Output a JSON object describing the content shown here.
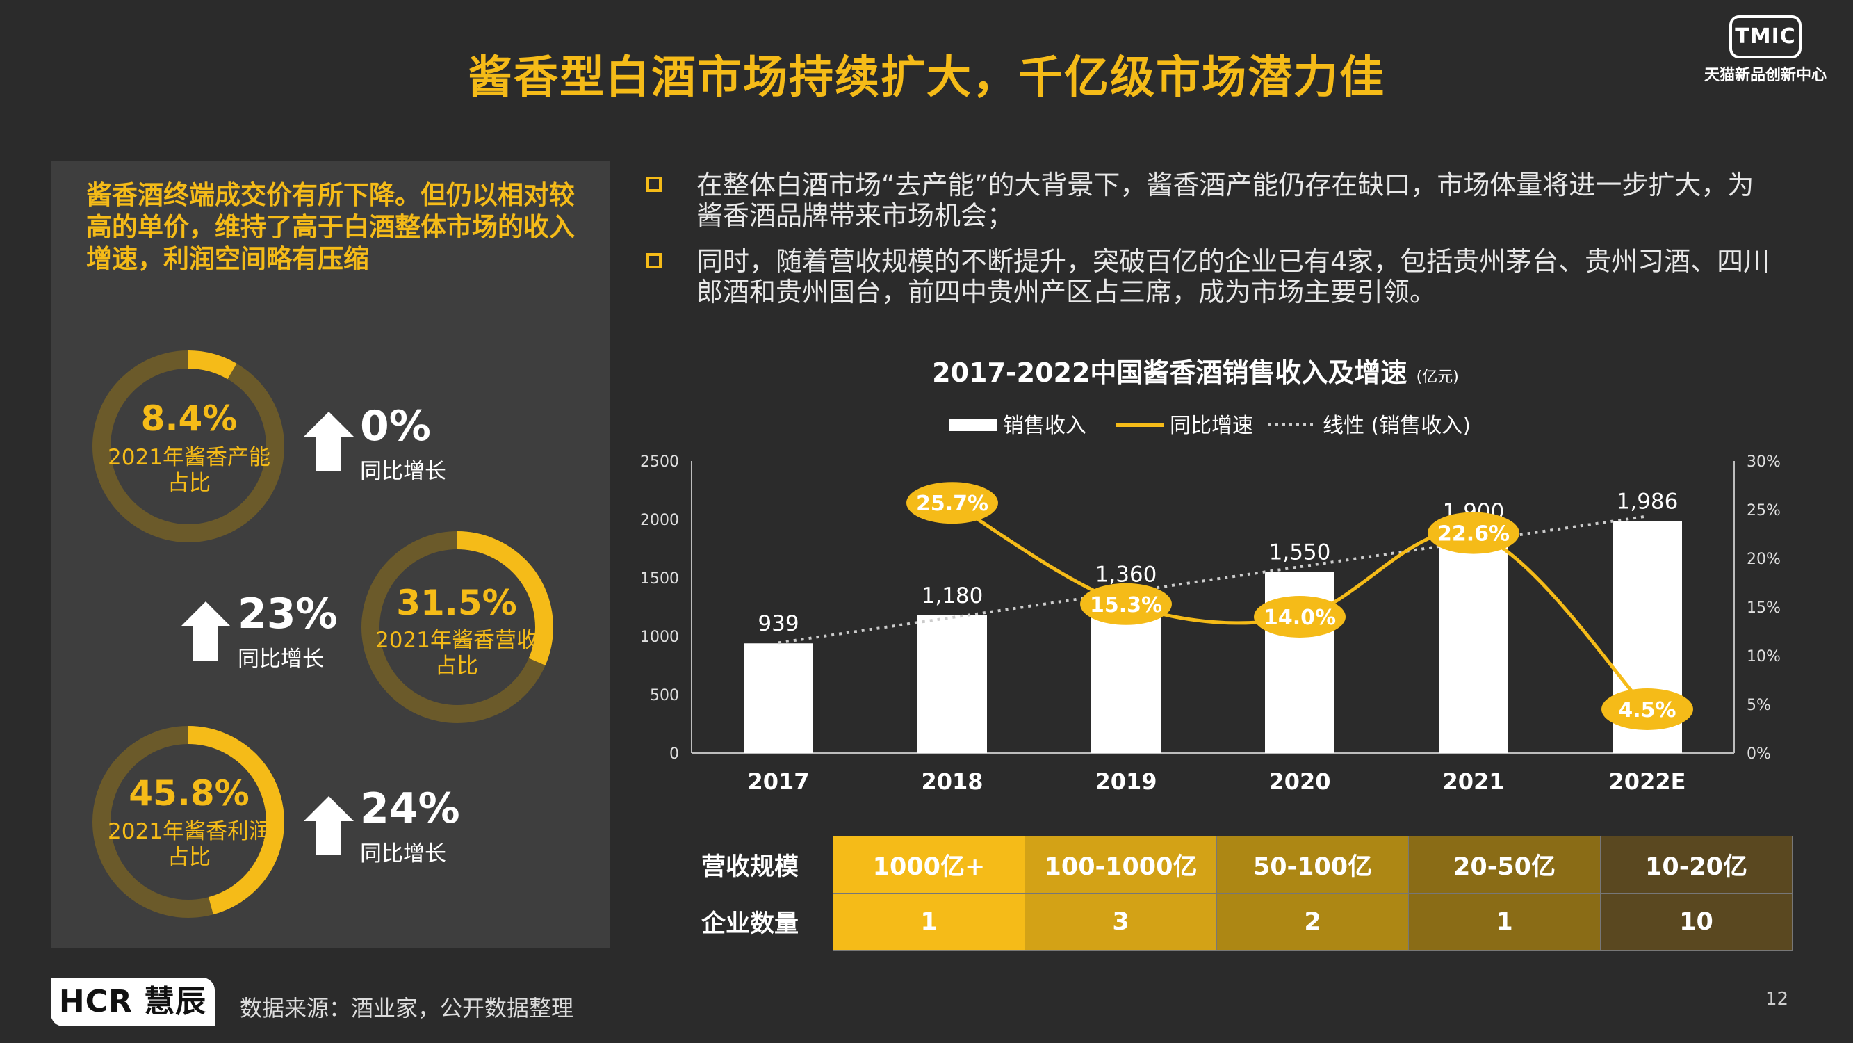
{
  "title": "酱香型白酒市场持续扩大，千亿级市场潜力佳",
  "logo": {
    "mark": "TMIC",
    "subtitle": "天猫新品创新中心"
  },
  "left_panel": {
    "title": "酱香酒终端成交价有所下降。但仍以相对较高的单价，维持了高于白酒整体市场的收入增速，利润空间略有压缩",
    "rings": [
      {
        "value": "8.4%",
        "label": "2021年酱香产能占比",
        "fraction": 0.084
      },
      {
        "value": "31.5%",
        "label": "2021年酱香营收占比",
        "fraction": 0.315
      },
      {
        "value": "45.8%",
        "label": "2021年酱香利润占比",
        "fraction": 0.458
      }
    ],
    "stats": [
      {
        "value": "0%",
        "label": "同比增长"
      },
      {
        "value": "23%",
        "label": "同比增长"
      },
      {
        "value": "24%",
        "label": "同比增长"
      }
    ]
  },
  "bullets": [
    "在整体白酒市场“去产能”的大背景下，酱香酒产能仍存在缺口，市场体量将进一步扩大，为酱香酒品牌带来市场机会；",
    "同时，随着营收规模的不断提升，突破百亿的企业已有4家，包括贵州茅台、贵州习酒、四川郎酒和贵州国台，前四中贵州产区占三席，成为市场主要引领。"
  ],
  "chart_data": {
    "type": "bar",
    "title": "2017-2022中国酱香酒销售收入及增速",
    "unit": "(亿元)",
    "categories": [
      "2017",
      "2018",
      "2019",
      "2020",
      "2021",
      "2022E"
    ],
    "series": [
      {
        "name": "销售收入",
        "type": "bar",
        "axis": "left",
        "values": [
          939,
          1180,
          1360,
          1550,
          1900,
          1986
        ],
        "labels": [
          "939",
          "1,180",
          "1,360",
          "1,550",
          "1,900",
          "1,986"
        ]
      },
      {
        "name": "同比增速",
        "type": "line",
        "axis": "right",
        "values": [
          null,
          25.7,
          15.3,
          14.0,
          22.6,
          4.5
        ],
        "labels": [
          "",
          "25.7%",
          "15.3%",
          "14.0%",
          "22.6%",
          "4.5%"
        ]
      },
      {
        "name": "线性 (销售收入)",
        "type": "trendline",
        "axis": "left"
      }
    ],
    "y_left": {
      "min": 0,
      "max": 2500,
      "ticks": [
        "0",
        "500",
        "1000",
        "1500",
        "2000",
        "2500"
      ]
    },
    "y_right": {
      "min": 0,
      "max": 30,
      "ticks": [
        "0%",
        "5%",
        "10%",
        "15%",
        "20%",
        "25%",
        "30%"
      ]
    },
    "legend_position": "top-center",
    "colors": {
      "bar": "#ffffff",
      "line": "#f5bb18",
      "trend": "#cccccc"
    }
  },
  "scale_table": {
    "row_labels": [
      "营收规模",
      "企业数量"
    ],
    "ranges": [
      "1000亿+",
      "100-1000亿",
      "50-100亿",
      "20-50亿",
      "10-20亿"
    ],
    "counts": [
      "1",
      "3",
      "2",
      "1",
      "10"
    ],
    "colors": [
      "#f5bb18",
      "#d3a216",
      "#ad8714",
      "#8a6c16",
      "#5a4820"
    ]
  },
  "footer": {
    "brand": "HCR 慧辰",
    "source": "数据来源：酒业家，公开数据整理",
    "page": "12"
  }
}
